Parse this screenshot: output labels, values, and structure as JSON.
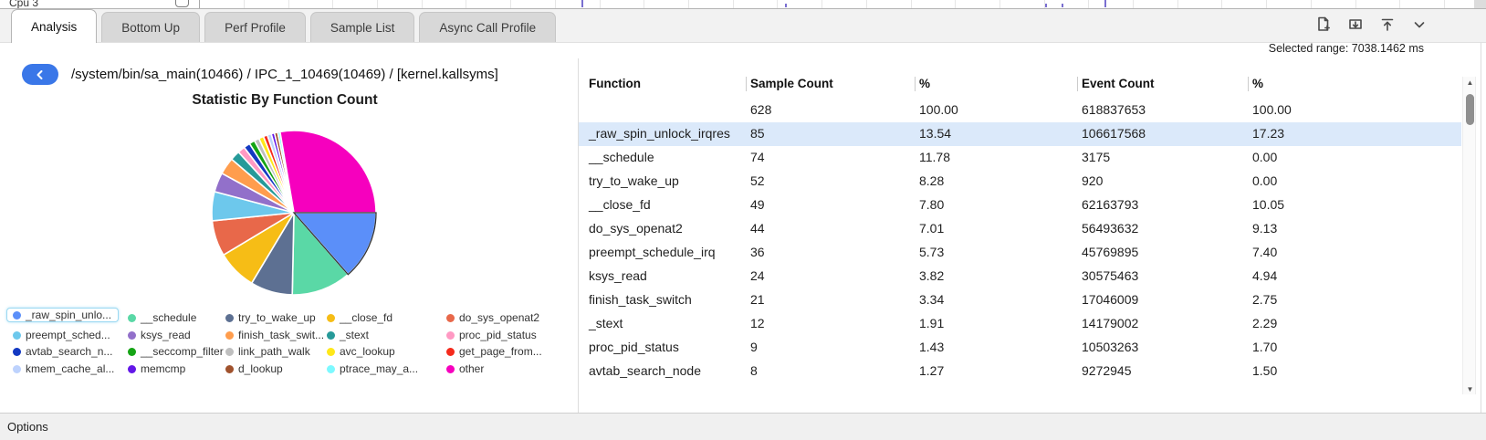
{
  "timeline_strip": {
    "cpu_label": "Cpu 3"
  },
  "tabs": {
    "items": [
      {
        "label": "Analysis",
        "active": true
      },
      {
        "label": "Bottom Up",
        "active": false
      },
      {
        "label": "Perf Profile",
        "active": false
      },
      {
        "label": "Sample List",
        "active": false
      },
      {
        "label": "Async Call Profile",
        "active": false
      }
    ]
  },
  "toolbar": {
    "icons": [
      "new-report-icon",
      "download-icon",
      "export-top-icon",
      "collapse-icon"
    ]
  },
  "header": {
    "selected_range_label": "Selected range: 7038.1462 ms"
  },
  "breadcrumb": {
    "path": "/system/bin/sa_main(10466) / IPC_1_10469(10469) / [kernel.kallsyms]",
    "back_icon": "chevron-left"
  },
  "chart_data": {
    "type": "pie",
    "title": "Statistic By Function Count",
    "unit": "percent of sample count",
    "start_angle_deg": 0,
    "direction": "clockwise",
    "slices": [
      {
        "label": "_raw_spin_unlock_irqres",
        "value": 13.54,
        "color": "#5B8FF9",
        "selected": true
      },
      {
        "label": "__schedule",
        "value": 11.78,
        "color": "#5AD8A6"
      },
      {
        "label": "try_to_wake_up",
        "value": 8.28,
        "color": "#5D7092"
      },
      {
        "label": "__close_fd",
        "value": 7.8,
        "color": "#F6BD16"
      },
      {
        "label": "do_sys_openat2",
        "value": 7.01,
        "color": "#E8684A"
      },
      {
        "label": "preempt_schedule_irq",
        "value": 5.73,
        "color": "#6DC8EC"
      },
      {
        "label": "ksys_read",
        "value": 3.82,
        "color": "#9270CA"
      },
      {
        "label": "finish_task_switch",
        "value": 3.34,
        "color": "#FF9D4D"
      },
      {
        "label": "_stext",
        "value": 1.91,
        "color": "#269A99"
      },
      {
        "label": "proc_pid_status",
        "value": 1.43,
        "color": "#FF99C3"
      },
      {
        "label": "avtab_search_node",
        "value": 1.27,
        "color": "#1339C2"
      },
      {
        "label": "__seccomp_filter",
        "value": 1.11,
        "color": "#15A415"
      },
      {
        "label": "link_path_walk",
        "value": 0.96,
        "color": "#BFBFBF"
      },
      {
        "label": "avc_lookup",
        "value": 0.96,
        "color": "#FFE81A"
      },
      {
        "label": "get_page_from...",
        "value": 0.8,
        "color": "#F52A1C"
      },
      {
        "label": "kmem_cache_al...",
        "value": 0.8,
        "color": "#BDD2FD"
      },
      {
        "label": "memcmp",
        "value": 0.64,
        "color": "#6317E8"
      },
      {
        "label": "d_lookup",
        "value": 0.64,
        "color": "#A0522D"
      },
      {
        "label": "ptrace_may_a...",
        "value": 0.48,
        "color": "#7DF9FF"
      },
      {
        "label": "other",
        "value": 27.7,
        "color": "#F600BE"
      }
    ],
    "legend": {
      "position": "bottom",
      "columns": 5,
      "items": [
        {
          "label": "_raw_spin_unlo...",
          "color": "#5B8FF9",
          "selected": true
        },
        {
          "label": "__schedule",
          "color": "#5AD8A6"
        },
        {
          "label": "try_to_wake_up",
          "color": "#5D7092"
        },
        {
          "label": "__close_fd",
          "color": "#F6BD16"
        },
        {
          "label": "do_sys_openat2",
          "color": "#E8684A"
        },
        {
          "label": "preempt_sched...",
          "color": "#6DC8EC"
        },
        {
          "label": "ksys_read",
          "color": "#9270CA"
        },
        {
          "label": "finish_task_swit...",
          "color": "#FF9D4D"
        },
        {
          "label": "_stext",
          "color": "#269A99"
        },
        {
          "label": "proc_pid_status",
          "color": "#FF99C3"
        },
        {
          "label": "avtab_search_n...",
          "color": "#1339C2"
        },
        {
          "label": "__seccomp_filter",
          "color": "#15A415"
        },
        {
          "label": "link_path_walk",
          "color": "#BFBFBF"
        },
        {
          "label": "avc_lookup",
          "color": "#FFE81A"
        },
        {
          "label": "get_page_from...",
          "color": "#F52A1C"
        },
        {
          "label": "kmem_cache_al...",
          "color": "#BDD2FD"
        },
        {
          "label": "memcmp",
          "color": "#6317E8"
        },
        {
          "label": "d_lookup",
          "color": "#A0522D"
        },
        {
          "label": "ptrace_may_a...",
          "color": "#7DF9FF"
        },
        {
          "label": "other",
          "color": "#F600BE"
        }
      ]
    }
  },
  "table": {
    "columns": [
      "Function",
      "Sample Count",
      "%",
      "Event Count",
      "%"
    ],
    "selected_row_index": 1,
    "selected_row_color": "#dbe9fa",
    "rows": [
      {
        "function": "",
        "sample_count": "628",
        "sample_pct": "100.00",
        "event_count": "618837653",
        "event_pct": "100.00"
      },
      {
        "function": "_raw_spin_unlock_irqres",
        "sample_count": "85",
        "sample_pct": "13.54",
        "event_count": "106617568",
        "event_pct": "17.23"
      },
      {
        "function": "__schedule",
        "sample_count": "74",
        "sample_pct": "11.78",
        "event_count": "3175",
        "event_pct": "0.00"
      },
      {
        "function": "try_to_wake_up",
        "sample_count": "52",
        "sample_pct": "8.28",
        "event_count": "920",
        "event_pct": "0.00"
      },
      {
        "function": "__close_fd",
        "sample_count": "49",
        "sample_pct": "7.80",
        "event_count": "62163793",
        "event_pct": "10.05"
      },
      {
        "function": "do_sys_openat2",
        "sample_count": "44",
        "sample_pct": "7.01",
        "event_count": "56493632",
        "event_pct": "9.13"
      },
      {
        "function": "preempt_schedule_irq",
        "sample_count": "36",
        "sample_pct": "5.73",
        "event_count": "45769895",
        "event_pct": "7.40"
      },
      {
        "function": "ksys_read",
        "sample_count": "24",
        "sample_pct": "3.82",
        "event_count": "30575463",
        "event_pct": "4.94"
      },
      {
        "function": "finish_task_switch",
        "sample_count": "21",
        "sample_pct": "3.34",
        "event_count": "17046009",
        "event_pct": "2.75"
      },
      {
        "function": "_stext",
        "sample_count": "12",
        "sample_pct": "1.91",
        "event_count": "14179002",
        "event_pct": "2.29"
      },
      {
        "function": "proc_pid_status",
        "sample_count": "9",
        "sample_pct": "1.43",
        "event_count": "10503263",
        "event_pct": "1.70"
      },
      {
        "function": "avtab_search_node",
        "sample_count": "8",
        "sample_pct": "1.27",
        "event_count": "9272945",
        "event_pct": "1.50"
      }
    ]
  },
  "footer": {
    "options_label": "Options"
  },
  "colors": {
    "accent_blue": "#3a77e8",
    "selected_row": "#dbe9fa",
    "tab_inactive": "#d8d8d8"
  }
}
